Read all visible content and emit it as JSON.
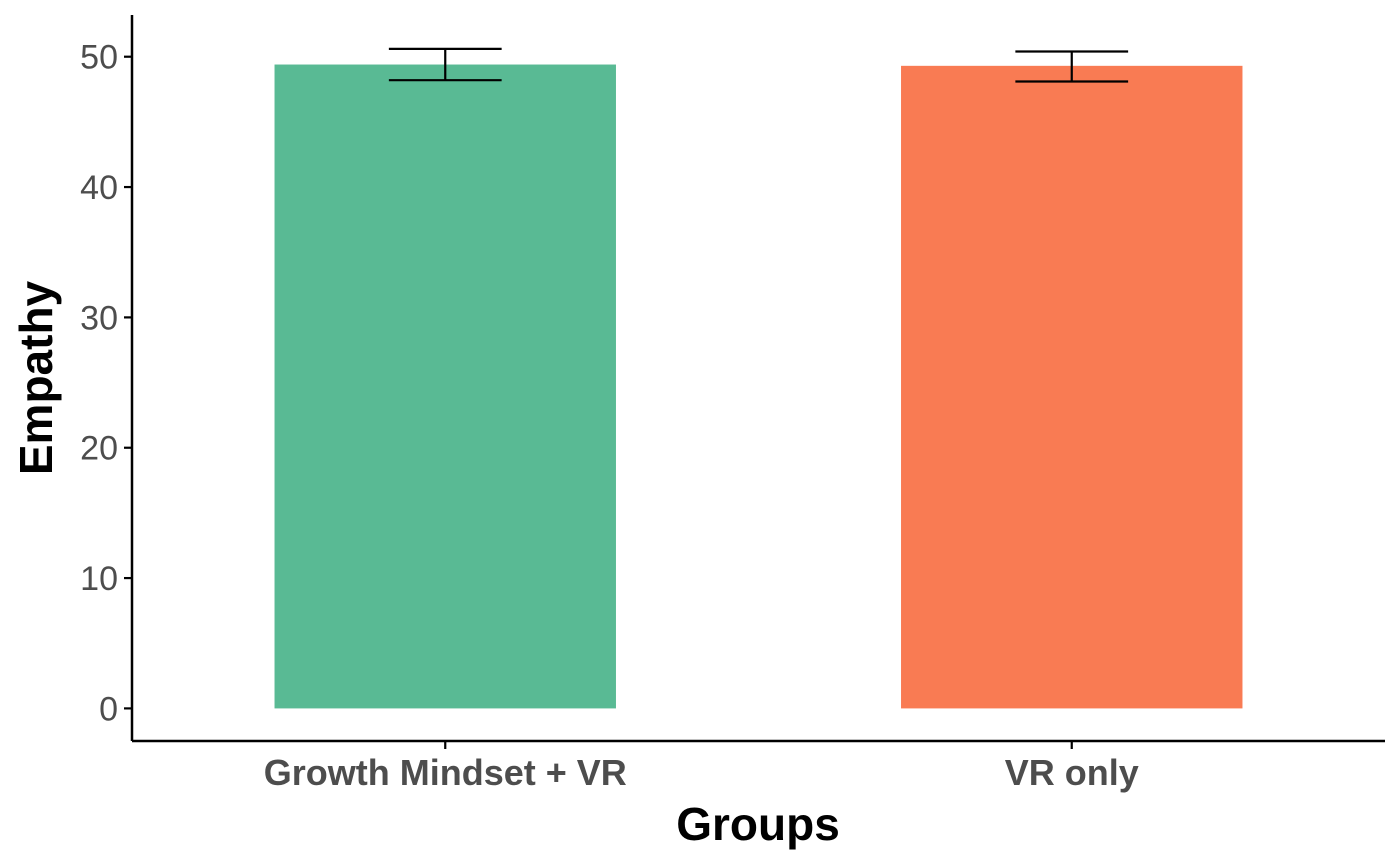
{
  "chart_data": {
    "type": "bar",
    "title": "",
    "xlabel": "Groups",
    "ylabel": "Empathy",
    "categories": [
      "Growth Mindset + VR",
      "VR only"
    ],
    "values": [
      49.4,
      49.3
    ],
    "error_bars": [
      {
        "low": 48.2,
        "high": 50.6
      },
      {
        "low": 48.1,
        "high": 50.4
      }
    ],
    "colors": [
      "#59BA94",
      "#F97B53"
    ],
    "ylim": [
      -2.5,
      53.2
    ],
    "yticks": [
      "0",
      "10",
      "20",
      "30",
      "40",
      "50"
    ],
    "ytick_values": [
      0,
      10,
      20,
      30,
      40,
      50
    ],
    "grid": false,
    "legend": "none"
  }
}
